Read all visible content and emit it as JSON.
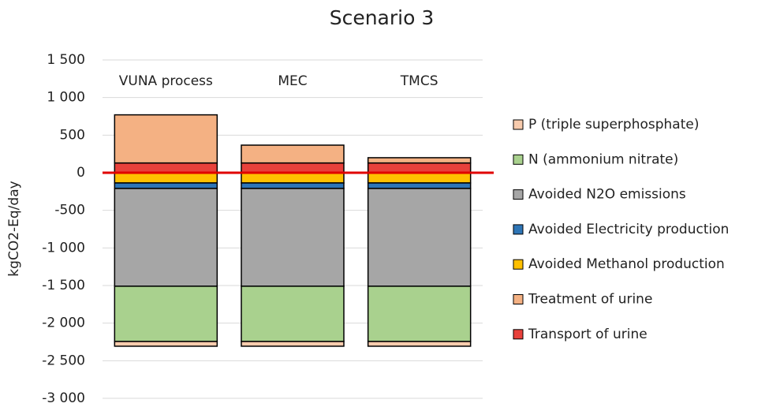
{
  "chart_data": {
    "type": "stacked-bar",
    "title": "Scenario 3",
    "y_label": "kgCO2-Eq/day",
    "categories": [
      "VUNA process",
      "MEC",
      "TMCS"
    ],
    "series": [
      {
        "name": "Transport of urine",
        "color": "#e8413b",
        "values": [
          130,
          130,
          130
        ]
      },
      {
        "name": "Treatment of urine",
        "color": "#f4b183",
        "values": [
          640,
          237,
          70
        ]
      },
      {
        "name": "Avoided Methanol production",
        "color": "#ffc000",
        "values": [
          -136,
          -136,
          -136
        ]
      },
      {
        "name": "Avoided Electricity production",
        "color": "#2e75b6",
        "values": [
          -73,
          -73,
          -73
        ]
      },
      {
        "name": "Avoided N2O emissions",
        "color": "#a6a6a6",
        "values": [
          -1300,
          -1300,
          -1300
        ]
      },
      {
        "name": "N (ammonium nitrate)",
        "color": "#a9d18e",
        "values": [
          -735,
          -735,
          -735
        ]
      },
      {
        "name": "P (triple superphosphate)",
        "color": "#f8cbad",
        "values": [
          -63,
          -63,
          -63
        ]
      }
    ],
    "ylim": [
      -3000,
      1500
    ],
    "yticks": [
      {
        "value": 1500,
        "label": "1 500"
      },
      {
        "value": 1000,
        "label": "1 000"
      },
      500,
      0,
      -500,
      {
        "value": -1000,
        "label": "-1 000"
      },
      {
        "value": -1500,
        "label": "-1 500"
      },
      {
        "value": -2000,
        "label": "-2 000"
      },
      {
        "value": -2500,
        "label": "-2 500"
      },
      {
        "value": -3000,
        "label": "-3 000"
      }
    ],
    "grid": true,
    "legend": "right"
  }
}
